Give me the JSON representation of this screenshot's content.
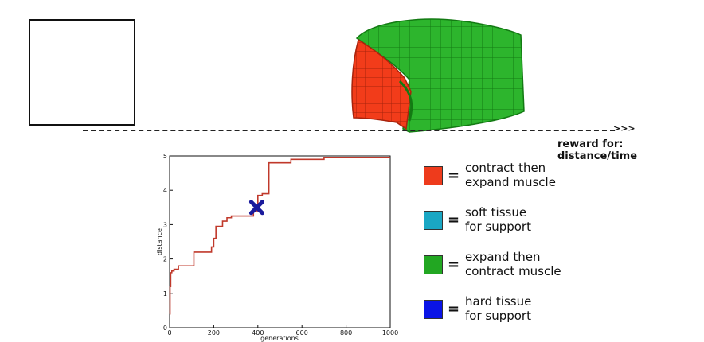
{
  "scene": {
    "ground_arrow": ">>>",
    "reward_label": "reward for: distance/time"
  },
  "chart_data": {
    "type": "line",
    "xlabel": "generations",
    "ylabel": "distance",
    "xlim": [
      0,
      1000
    ],
    "ylim": [
      0,
      5
    ],
    "xticks": [
      "0",
      "200",
      "400",
      "600",
      "800",
      "1000"
    ],
    "yticks": [
      "0",
      "1",
      "2",
      "3",
      "4",
      "5"
    ],
    "grid": false,
    "step": true,
    "color": "#c0392b",
    "marker": {
      "x": 395,
      "y": 3.5,
      "symbol": "x",
      "color": "#1a1a9c"
    },
    "series": [
      {
        "x": [
          0,
          2,
          5,
          10,
          20,
          40,
          60,
          110,
          150,
          190,
          200,
          210,
          220,
          240,
          260,
          280,
          330,
          380,
          400,
          420,
          450,
          500,
          550,
          600,
          700,
          800,
          1000
        ],
        "y": [
          0.4,
          1.2,
          1.6,
          1.65,
          1.7,
          1.8,
          1.8,
          2.2,
          2.2,
          2.35,
          2.6,
          2.95,
          2.95,
          3.1,
          3.2,
          3.25,
          3.25,
          3.4,
          3.85,
          3.9,
          4.8,
          4.8,
          4.9,
          4.9,
          4.95,
          4.95,
          4.95
        ]
      }
    ]
  },
  "legend": {
    "items": [
      {
        "lines": [
          "contract then",
          "expand muscle"
        ],
        "color": "#ee3b1c"
      },
      {
        "lines": [
          "soft tissue",
          "for support"
        ],
        "color": "#1aa7c4"
      },
      {
        "lines": [
          "expand then",
          "contract muscle"
        ],
        "color": "#22a722"
      },
      {
        "lines": [
          "hard tissue",
          "for support"
        ],
        "color": "#0a14e6"
      }
    ],
    "equals": "="
  }
}
